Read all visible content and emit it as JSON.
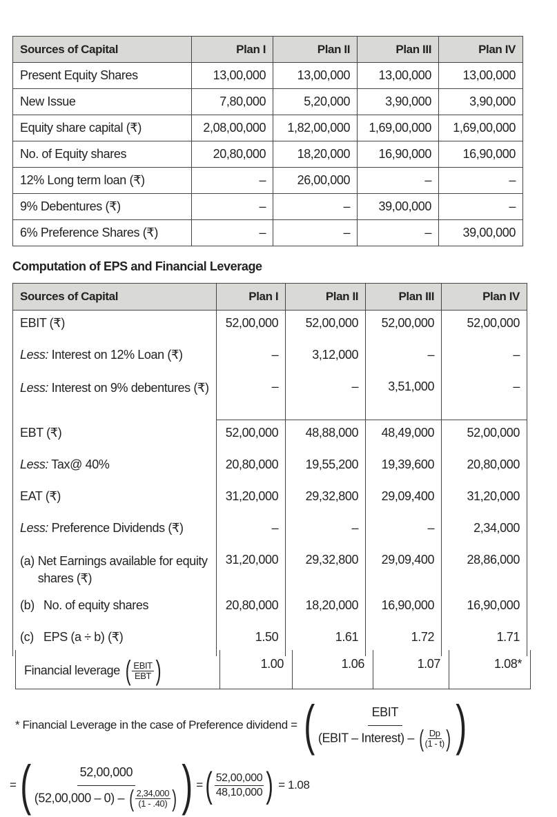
{
  "table1": {
    "headers": [
      "Sources of Capital",
      "Plan I",
      "Plan II",
      "Plan III",
      "Plan IV"
    ],
    "rows": [
      [
        "Present Equity Shares",
        "13,00,000",
        "13,00,000",
        "13,00,000",
        "13,00,000"
      ],
      [
        "New Issue",
        "7,80,000",
        "5,20,000",
        "3,90,000",
        "3,90,000"
      ],
      [
        "Equity share capital (₹)",
        "2,08,00,000",
        "1,82,00,000",
        "1,69,00,000",
        "1,69,00,000"
      ],
      [
        "No. of Equity shares",
        "20,80,000",
        "18,20,000",
        "16,90,000",
        "16,90,000"
      ],
      [
        "12% Long term loan (₹)",
        "–",
        "26,00,000",
        "–",
        "–"
      ],
      [
        "9% Debentures (₹)",
        "–",
        "–",
        "39,00,000",
        "–"
      ],
      [
        "6% Preference Shares (₹)",
        "–",
        "–",
        "–",
        "39,00,000"
      ]
    ]
  },
  "section_title": "Computation of EPS and Financial Leverage",
  "table2": {
    "headers": [
      "Sources of Capital",
      "Plan I",
      "Plan II",
      "Plan III",
      "Plan IV"
    ],
    "rows": [
      {
        "prefix": "",
        "label": "EBIT (₹)",
        "values": [
          "52,00,000",
          "52,00,000",
          "52,00,000",
          "52,00,000"
        ]
      },
      {
        "prefix": "Less:",
        "label": " Interest on 12% Loan (₹)",
        "values": [
          "–",
          "3,12,000",
          "–",
          "–"
        ]
      },
      {
        "prefix": "Less:",
        "label": " Interest on 9% debentures (₹)",
        "values": [
          "–",
          "–",
          "3,51,000",
          "–"
        ]
      },
      {
        "prefix": "",
        "label": "EBT (₹)",
        "values": [
          "52,00,000",
          "48,88,000",
          "48,49,000",
          "52,00,000"
        ]
      },
      {
        "prefix": "Less:",
        "label": " Tax@ 40%",
        "values": [
          "20,80,000",
          "19,55,200",
          "19,39,600",
          "20,80,000"
        ]
      },
      {
        "prefix": "",
        "label": "EAT (₹)",
        "values": [
          "31,20,000",
          "29,32,800",
          "29,09,400",
          "31,20,000"
        ]
      },
      {
        "prefix": "Less:",
        "label": " Preference Dividends (₹)",
        "values": [
          "–",
          "–",
          "–",
          "2,34,000"
        ]
      },
      {
        "prefix": "(a)",
        "label": "Net Earnings available for equity shares (₹)",
        "values": [
          "31,20,000",
          "29,32,800",
          "29,09,400",
          "28,86,000"
        ]
      },
      {
        "prefix": "(b)",
        "label": "No. of equity shares",
        "values": [
          "20,80,000",
          "18,20,000",
          "16,90,000",
          "16,90,000"
        ]
      },
      {
        "prefix": "(c)",
        "label": "EPS (a ÷ b) (₹)",
        "values": [
          "1.50",
          "1.61",
          "1.72",
          "1.71"
        ]
      }
    ]
  },
  "financial_leverage": {
    "label": "Financial leverage",
    "num": "EBIT",
    "den": "EBT",
    "values": [
      "1.00",
      "1.06",
      "1.07",
      "1.08*"
    ]
  },
  "note": {
    "text": "* Financial Leverage in the case of Preference dividend =",
    "formula_num": "EBIT",
    "formula_den_a": "(EBIT – Interest) –",
    "formula_dp": "Dp",
    "formula_t": "(1 - t)",
    "eq": "=",
    "calc_num": "52,00,000",
    "calc_den_a": "(52,00,000 – 0) –",
    "calc_pd": "2,34,000",
    "calc_t": "(1 - .40)",
    "eq2": "=",
    "simp_num": "52,00,000",
    "simp_den": "48,10,000",
    "result": "= 1.08"
  }
}
